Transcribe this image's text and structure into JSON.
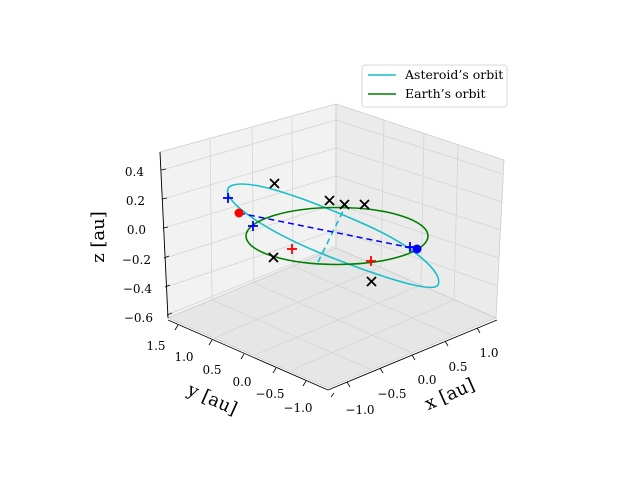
{
  "chart_data": {
    "type": "line",
    "projection": "3d",
    "xlabel": "x [au]",
    "ylabel": "y [au]",
    "zlabel": "z [au]",
    "x_ticks": [
      "−1.0",
      "−0.5",
      "0.0",
      "0.5",
      "1.0"
    ],
    "y_ticks": [
      "1.5",
      "1.0",
      "0.5",
      "0.0",
      "−0.5",
      "−1.0"
    ],
    "z_ticks": [
      "0.4",
      "0.2",
      "0.0",
      "−0.2",
      "−0.4",
      "−0.6"
    ],
    "xlim": [
      -1.2,
      1.4
    ],
    "ylim": [
      -1.2,
      1.6
    ],
    "zlim": [
      -0.62,
      0.5
    ],
    "grid": true,
    "legend_position": "upper right",
    "series": [
      {
        "name": "Asteroid’s orbit",
        "color": "#17bec9",
        "style": "solid"
      },
      {
        "name": "Earth’s orbit",
        "color": "#008000",
        "style": "solid"
      }
    ],
    "colors": {
      "asteroid": "#17bec9",
      "earth": "#008000",
      "line_of_nodes": "#0000ff",
      "red_markers": "#ff0000",
      "black_markers": "#000000",
      "pane": "#f2f2f2",
      "grid": "#d0d0d0"
    }
  }
}
